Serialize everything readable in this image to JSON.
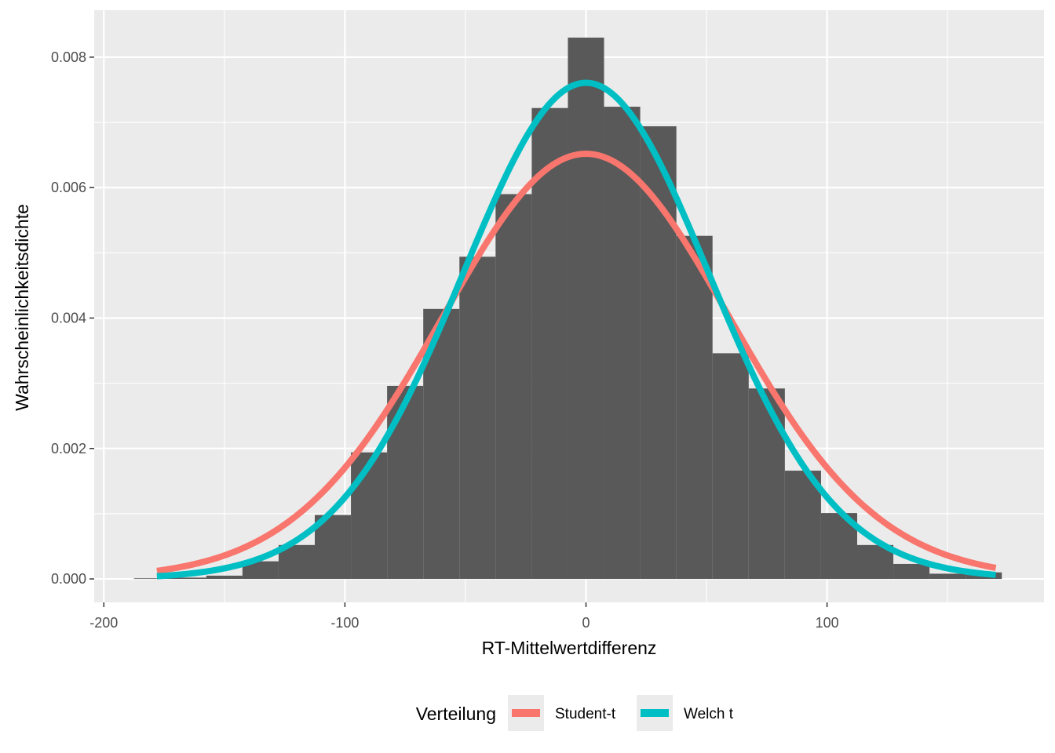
{
  "chart_data": {
    "type": "bar",
    "xlabel": "RT-Mittelwertdifferenz",
    "ylabel": "Wahrscheinlichkeitsdichte",
    "xlim": [
      -204,
      190
    ],
    "ylim": [
      -0.00036,
      0.00872
    ],
    "x_ticks": [
      -200,
      -100,
      0,
      100
    ],
    "x_tick_labels": [
      "-200",
      "-100",
      "0",
      "100"
    ],
    "y_ticks": [
      0,
      0.002,
      0.004,
      0.006,
      0.008
    ],
    "y_tick_labels": [
      "0.000",
      "0.002",
      "0.004",
      "0.006",
      "0.008"
    ],
    "x_minor": [
      -150,
      -50,
      50,
      150
    ],
    "y_minor": [
      0.001,
      0.003,
      0.005,
      0.007
    ],
    "grid": true,
    "panel_background": "#ebebeb",
    "histogram": {
      "fill": "#595959",
      "bins": [
        {
          "x0": -187.5,
          "x1": -172.5,
          "density": 1e-05
        },
        {
          "x0": -172.5,
          "x1": -157.5,
          "density": 2e-05
        },
        {
          "x0": -157.5,
          "x1": -142.5,
          "density": 5e-05
        },
        {
          "x0": -142.5,
          "x1": -127.5,
          "density": 0.00027
        },
        {
          "x0": -127.5,
          "x1": -112.5,
          "density": 0.00052
        },
        {
          "x0": -112.5,
          "x1": -97.5,
          "density": 0.00098
        },
        {
          "x0": -97.5,
          "x1": -82.5,
          "density": 0.00194
        },
        {
          "x0": -82.5,
          "x1": -67.5,
          "density": 0.00296
        },
        {
          "x0": -67.5,
          "x1": -52.5,
          "density": 0.00414
        },
        {
          "x0": -52.5,
          "x1": -37.5,
          "density": 0.00494
        },
        {
          "x0": -37.5,
          "x1": -22.5,
          "density": 0.0059
        },
        {
          "x0": -22.5,
          "x1": -7.5,
          "density": 0.00722
        },
        {
          "x0": -7.5,
          "x1": 7.5,
          "density": 0.0083
        },
        {
          "x0": 7.5,
          "x1": 22.5,
          "density": 0.00724
        },
        {
          "x0": 22.5,
          "x1": 37.5,
          "density": 0.00694
        },
        {
          "x0": 37.5,
          "x1": 52.5,
          "density": 0.00526
        },
        {
          "x0": 52.5,
          "x1": 67.5,
          "density": 0.00346
        },
        {
          "x0": 67.5,
          "x1": 82.5,
          "density": 0.00292
        },
        {
          "x0": 82.5,
          "x1": 97.5,
          "density": 0.00166
        },
        {
          "x0": 97.5,
          "x1": 112.5,
          "density": 0.00101
        },
        {
          "x0": 112.5,
          "x1": 127.5,
          "density": 0.00052
        },
        {
          "x0": 127.5,
          "x1": 142.5,
          "density": 0.00023
        },
        {
          "x0": 142.5,
          "x1": 157.5,
          "density": 8e-05
        },
        {
          "x0": 157.5,
          "x1": 172.5,
          "density": 0.0001
        }
      ]
    },
    "series": [
      {
        "name": "Student-t",
        "color": "#f8766d",
        "curve": "t-density",
        "scale": 60.8,
        "df": 38,
        "x_range": [
          -178,
          170
        ]
      },
      {
        "name": "Welch t",
        "color": "#00bfc4",
        "curve": "t-density",
        "scale": 52.1,
        "df": 38,
        "x_range": [
          -178,
          170
        ]
      }
    ],
    "legend": {
      "title": "Verteilung",
      "position": "bottom"
    }
  }
}
